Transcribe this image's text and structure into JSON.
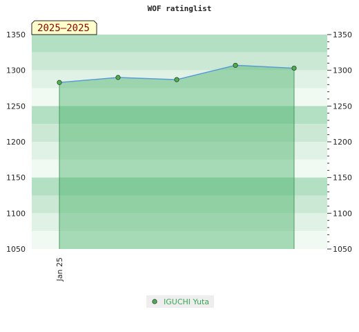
{
  "title": "WOF ratinglist",
  "period_label": "2025–2025",
  "chart_data": {
    "type": "area",
    "title": "WOF ratinglist",
    "xlabel": "",
    "ylabel": "",
    "ylim": [
      1050,
      1350
    ],
    "y_ticks": [
      "1050",
      "1100",
      "1150",
      "1200",
      "1250",
      "1300",
      "1350"
    ],
    "x_tick_labels": [
      "Jan 25"
    ],
    "grid": true,
    "legend_position": "bottom-center",
    "series": [
      {
        "name": "IGUCHI Yuta",
        "values": [
          1283,
          1290,
          1287,
          1307,
          1303
        ]
      }
    ]
  },
  "colors": {
    "area_fill": "#3fae5f",
    "line": "#5b9bd5",
    "marker": "#4caf50",
    "band_dark": "#b3dfc3",
    "band_mid": "#cbe8d4",
    "band_light": "#e0f2e6",
    "band_lightest": "#f1f9f3",
    "period_box": "#ffffcc"
  }
}
